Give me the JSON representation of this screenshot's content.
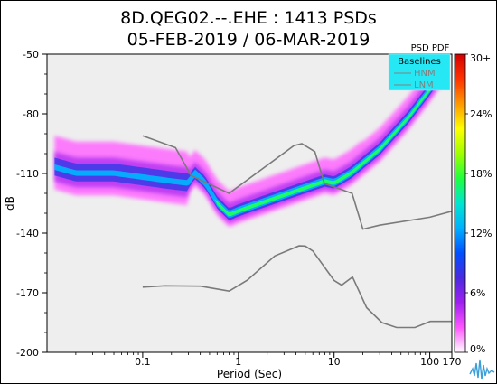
{
  "chart_data": {
    "type": "heatmap",
    "title_line1": "8D.QEG02.--.EHE : 1413 PSDs",
    "title_line2": "05-FEB-2019 / 06-MAR-2019",
    "xlabel": "Period (Sec)",
    "ylabel": "dB",
    "x_scale": "log",
    "xlim": [
      0.01,
      170
    ],
    "ylim": [
      -200,
      -50
    ],
    "x_ticks": [
      {
        "value": 0.1,
        "label": "0.1"
      },
      {
        "value": 1,
        "label": "1"
      },
      {
        "value": 10,
        "label": "10"
      },
      {
        "value": 100,
        "label": "100"
      },
      {
        "value": 170,
        "label": "170"
      }
    ],
    "y_ticks": [
      {
        "value": -50,
        "label": "-50"
      },
      {
        "value": -80,
        "label": "-80"
      },
      {
        "value": -110,
        "label": "-110"
      },
      {
        "value": -140,
        "label": "-140"
      },
      {
        "value": -170,
        "label": "-170"
      },
      {
        "value": -200,
        "label": "-200"
      }
    ],
    "colorbar": {
      "title": "PSD PDF",
      "ticks": [
        "30+",
        "24%",
        "18%",
        "12%",
        "6%",
        "0%"
      ],
      "tick_values": [
        30,
        24,
        18,
        12,
        6,
        0
      ],
      "colors": [
        "#ffffff",
        "#ff55ff",
        "#a020f0",
        "#4a2ae0",
        "#0050ff",
        "#00b0ff",
        "#00e5d0",
        "#20ff40",
        "#a0ff00",
        "#ffff00",
        "#ff9900",
        "#ff3300",
        "#d40000"
      ]
    },
    "legend": {
      "title": "Baselines",
      "placement": "top-right",
      "background": "#26e8f5",
      "entries": [
        "HNM",
        "LNM"
      ]
    },
    "baselines": [
      {
        "name": "HNM",
        "points": [
          [
            0.1,
            -91
          ],
          [
            0.22,
            -97
          ],
          [
            0.32,
            -111
          ],
          [
            0.8,
            -120
          ],
          [
            3.8,
            -96
          ],
          [
            4.6,
            -95
          ],
          [
            6.3,
            -99
          ],
          [
            7.9,
            -115
          ],
          [
            15.4,
            -120
          ],
          [
            20,
            -138
          ],
          [
            30,
            -136
          ],
          [
            100,
            -132
          ],
          [
            170,
            -129
          ]
        ]
      },
      {
        "name": "LNM",
        "points": [
          [
            0.1,
            -167.2
          ],
          [
            0.17,
            -166.5
          ],
          [
            0.4,
            -166.7
          ],
          [
            0.8,
            -169.2
          ],
          [
            1.24,
            -163.7
          ],
          [
            2.4,
            -151.5
          ],
          [
            4.3,
            -146.4
          ],
          [
            5,
            -146.5
          ],
          [
            6,
            -149
          ],
          [
            10,
            -163.8
          ],
          [
            12,
            -166.2
          ],
          [
            15.6,
            -162.1
          ],
          [
            21.9,
            -177.5
          ],
          [
            31.6,
            -185
          ],
          [
            45,
            -187.5
          ],
          [
            70,
            -187.5
          ],
          [
            101,
            -184.4
          ],
          [
            170,
            -184.4
          ]
        ]
      }
    ],
    "pdf_mode": [
      [
        0.012,
        -107
      ],
      [
        0.02,
        -110
      ],
      [
        0.05,
        -110
      ],
      [
        0.1,
        -112
      ],
      [
        0.2,
        -114
      ],
      [
        0.3,
        -115
      ],
      [
        0.35,
        -110
      ],
      [
        0.45,
        -115
      ],
      [
        0.6,
        -125
      ],
      [
        0.8,
        -131
      ],
      [
        1.0,
        -129
      ],
      [
        2,
        -124
      ],
      [
        4,
        -119
      ],
      [
        8,
        -114
      ],
      [
        10,
        -115
      ],
      [
        15,
        -110
      ],
      [
        30,
        -98
      ],
      [
        60,
        -82
      ],
      [
        100,
        -68
      ],
      [
        130,
        -60
      ]
    ]
  }
}
